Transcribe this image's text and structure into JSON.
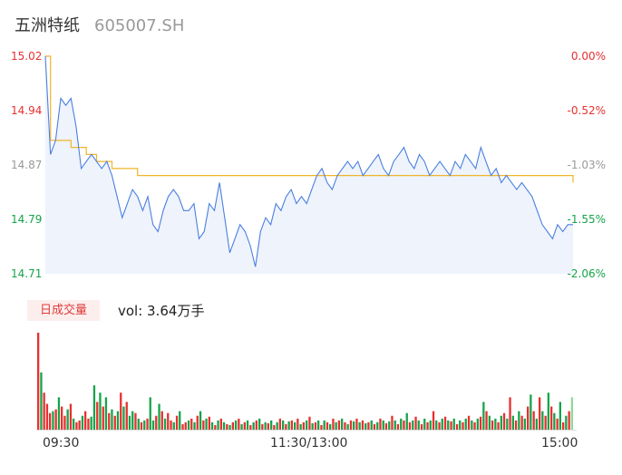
{
  "header": {
    "name": "五洲特纸",
    "code": "605007.SH"
  },
  "colors": {
    "up": "#e8302f",
    "down": "#16a34a",
    "flat": "#999999",
    "price_line": "#4a7fe0",
    "avg_line": "#f0b429",
    "price_fill": "#eef3fc"
  },
  "volume_tab": {
    "label": "日成交量",
    "info": "vol: 3.64万手"
  },
  "chart_data": [
    {
      "type": "line",
      "title": "",
      "y_ticks_left": [
        "15.02",
        "14.94",
        "14.87",
        "14.79",
        "14.71"
      ],
      "y_ticks_right": [
        "0.00%",
        "-0.52%",
        "-1.03%",
        "-1.55%",
        "-2.06%"
      ],
      "x_ticks": [
        "09:30",
        "11:30/13:00",
        "15:00"
      ],
      "ylim": [
        14.71,
        15.02
      ],
      "reference_price": 15.02,
      "series": [
        {
          "values": [
            15.02,
            14.88,
            14.9,
            14.96,
            14.95,
            14.96,
            14.92,
            14.86,
            14.87,
            14.88,
            14.87,
            14.86,
            14.87,
            14.85,
            14.82,
            14.79,
            14.81,
            14.83,
            14.82,
            14.8,
            14.82,
            14.78,
            14.77,
            14.8,
            14.82,
            14.83,
            14.82,
            14.8,
            14.8,
            14.81,
            14.76,
            14.77,
            14.81,
            14.8,
            14.84,
            14.79,
            14.74,
            14.76,
            14.78,
            14.77,
            14.75,
            14.72,
            14.77,
            14.79,
            14.78,
            14.81,
            14.8,
            14.82,
            14.83,
            14.81,
            14.82,
            14.81,
            14.83,
            14.85,
            14.86,
            14.84,
            14.83,
            14.85,
            14.86,
            14.87,
            14.86,
            14.87,
            14.85,
            14.86,
            14.87,
            14.88,
            14.86,
            14.85,
            14.87,
            14.88,
            14.89,
            14.87,
            14.86,
            14.88,
            14.87,
            14.85,
            14.86,
            14.87,
            14.86,
            14.85,
            14.87,
            14.86,
            14.88,
            14.87,
            14.86,
            14.89,
            14.87,
            14.85,
            14.86,
            14.84,
            14.85,
            14.84,
            14.83,
            14.84,
            14.83,
            14.82,
            14.8,
            14.78,
            14.77,
            14.76,
            14.78,
            14.77,
            14.78,
            14.78
          ]
        },
        {
          "values": [
            15.02,
            14.9,
            14.9,
            14.9,
            14.9,
            14.89,
            14.89,
            14.89,
            14.88,
            14.88,
            14.87,
            14.87,
            14.87,
            14.86,
            14.86,
            14.86,
            14.86,
            14.86,
            14.85,
            14.85,
            14.85,
            14.85,
            14.85,
            14.85,
            14.85,
            14.85,
            14.85,
            14.85,
            14.85,
            14.85,
            14.85,
            14.85,
            14.85,
            14.85,
            14.85,
            14.85,
            14.85,
            14.85,
            14.85,
            14.85,
            14.85,
            14.85,
            14.85,
            14.85,
            14.85,
            14.85,
            14.85,
            14.85,
            14.85,
            14.85,
            14.85,
            14.85,
            14.85,
            14.85,
            14.85,
            14.85,
            14.85,
            14.85,
            14.85,
            14.85,
            14.85,
            14.85,
            14.85,
            14.85,
            14.85,
            14.85,
            14.85,
            14.85,
            14.85,
            14.85,
            14.85,
            14.85,
            14.85,
            14.85,
            14.85,
            14.85,
            14.85,
            14.85,
            14.85,
            14.85,
            14.85,
            14.85,
            14.85,
            14.85,
            14.85,
            14.85,
            14.85,
            14.85,
            14.85,
            14.85,
            14.85,
            14.85,
            14.85,
            14.85,
            14.85,
            14.85,
            14.85,
            14.85,
            14.85,
            14.85,
            14.85,
            14.85,
            14.85,
            14.84
          ]
        }
      ]
    },
    {
      "type": "bar",
      "title": "",
      "values": [
        105,
        62,
        40,
        28,
        18,
        20,
        22,
        35,
        25,
        15,
        22,
        28,
        12,
        8,
        10,
        15,
        20,
        12,
        14,
        48,
        30,
        40,
        25,
        35,
        18,
        22,
        15,
        20,
        40,
        25,
        30,
        15,
        20,
        18,
        12,
        8,
        10,
        12,
        35,
        10,
        15,
        28,
        20,
        12,
        18,
        10,
        8,
        15,
        20,
        6,
        8,
        10,
        12,
        8,
        15,
        20,
        10,
        12,
        14,
        8,
        5,
        10,
        12,
        8,
        6,
        5,
        8,
        10,
        12,
        6,
        8,
        10,
        5,
        8,
        10,
        12,
        6,
        8,
        7,
        10,
        5,
        8,
        12,
        10,
        6,
        9,
        10,
        8,
        12,
        6,
        8,
        10,
        14,
        7,
        8,
        10,
        5,
        10,
        8,
        6,
        12,
        8,
        10,
        12,
        8,
        6,
        10,
        9,
        12,
        8,
        10,
        7,
        8,
        10,
        6,
        8,
        12,
        10,
        7,
        9,
        15,
        10,
        6,
        12,
        10,
        18,
        8,
        10,
        14,
        10,
        6,
        12,
        8,
        10,
        20,
        10,
        8,
        12,
        14,
        10,
        9,
        12,
        6,
        10,
        8,
        12,
        15,
        10,
        8,
        12,
        14,
        30,
        20,
        15,
        10,
        12,
        8,
        15,
        18,
        12,
        35,
        15,
        10,
        20,
        15,
        12,
        25,
        38,
        20,
        12,
        35,
        20,
        15,
        40,
        25,
        18,
        12,
        30,
        8,
        15,
        20,
        35
      ],
      "up": [
        true,
        false,
        true,
        true,
        true,
        false,
        true,
        false,
        true,
        true,
        false,
        true,
        false,
        true,
        true,
        false,
        true,
        true,
        false,
        false,
        true,
        false,
        true,
        false,
        true,
        false,
        true,
        false,
        true,
        false,
        true,
        false,
        false,
        true,
        false,
        true,
        false,
        true,
        false,
        false,
        true,
        false,
        true,
        false,
        true,
        true,
        false,
        true,
        false,
        true,
        true,
        false,
        true,
        false,
        true,
        false,
        true,
        false,
        true,
        false,
        true,
        false,
        true,
        false,
        true,
        false,
        true,
        false,
        true,
        false,
        true,
        false,
        true,
        false,
        true,
        false,
        true,
        false,
        true,
        false,
        true,
        false,
        true,
        false,
        true,
        false,
        true,
        false,
        true,
        false,
        true,
        false,
        true,
        false,
        true,
        false,
        true,
        false,
        true,
        false,
        true,
        false,
        true,
        false,
        true,
        false,
        true,
        false,
        true,
        false,
        true,
        false,
        true,
        false,
        true,
        false,
        true,
        false,
        true,
        false,
        true,
        false,
        true,
        false,
        true,
        false,
        true,
        false,
        true,
        false,
        true,
        false,
        true,
        false,
        true,
        false,
        true,
        false,
        true,
        false,
        true,
        false,
        true,
        false,
        true,
        false,
        true,
        false,
        true,
        false,
        true,
        false,
        true,
        false,
        true,
        false,
        true,
        false,
        true,
        false,
        true,
        false,
        true,
        false,
        true,
        false,
        true,
        false,
        true,
        false,
        true,
        false,
        true,
        false,
        true,
        false,
        true,
        false,
        true,
        false,
        true,
        false,
        true,
        false,
        true,
        false
      ]
    }
  ]
}
